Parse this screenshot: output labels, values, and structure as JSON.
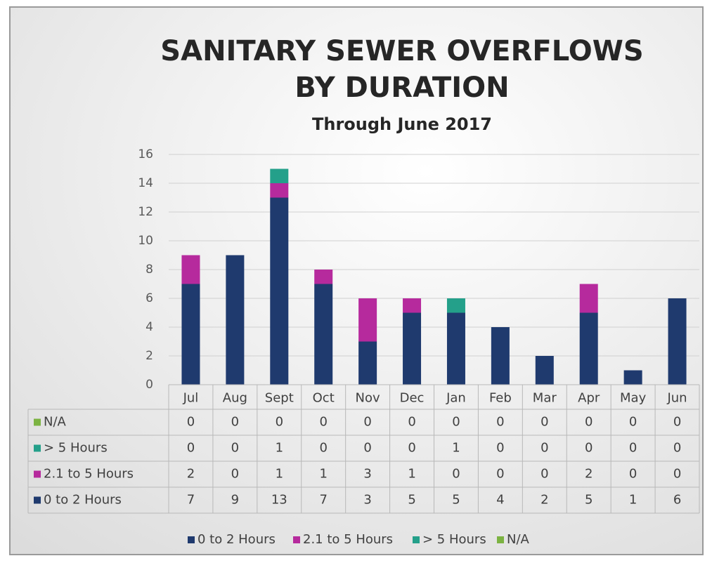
{
  "chart_data": {
    "type": "bar",
    "stacked": true,
    "title": "SANITARY SEWER OVERFLOWS",
    "title_line2": "BY DURATION",
    "subtitle": "Through June 2017",
    "categories": [
      "Jul",
      "Aug",
      "Sept",
      "Oct",
      "Nov",
      "Dec",
      "Jan",
      "Feb",
      "Mar",
      "Apr",
      "May",
      "Jun"
    ],
    "series": [
      {
        "name": "0 to 2 Hours",
        "color": "#1f3a6e",
        "values": [
          7,
          9,
          13,
          7,
          3,
          5,
          5,
          4,
          2,
          5,
          1,
          6
        ]
      },
      {
        "name": "2.1 to 5 Hours",
        "color": "#b62a9d",
        "values": [
          2,
          0,
          1,
          1,
          3,
          1,
          0,
          0,
          0,
          2,
          0,
          0
        ]
      },
      {
        "name": "> 5 Hours",
        "color": "#24a08a",
        "values": [
          0,
          0,
          1,
          0,
          0,
          0,
          1,
          0,
          0,
          0,
          0,
          0
        ]
      },
      {
        "name": "N/A",
        "color": "#7cb342",
        "values": [
          0,
          0,
          0,
          0,
          0,
          0,
          0,
          0,
          0,
          0,
          0,
          0
        ]
      }
    ],
    "ylim": [
      0,
      16
    ],
    "yticks": [
      0,
      2,
      4,
      6,
      8,
      10,
      12,
      14,
      16
    ],
    "grid": true,
    "legend": "bottom",
    "data_table": true
  }
}
